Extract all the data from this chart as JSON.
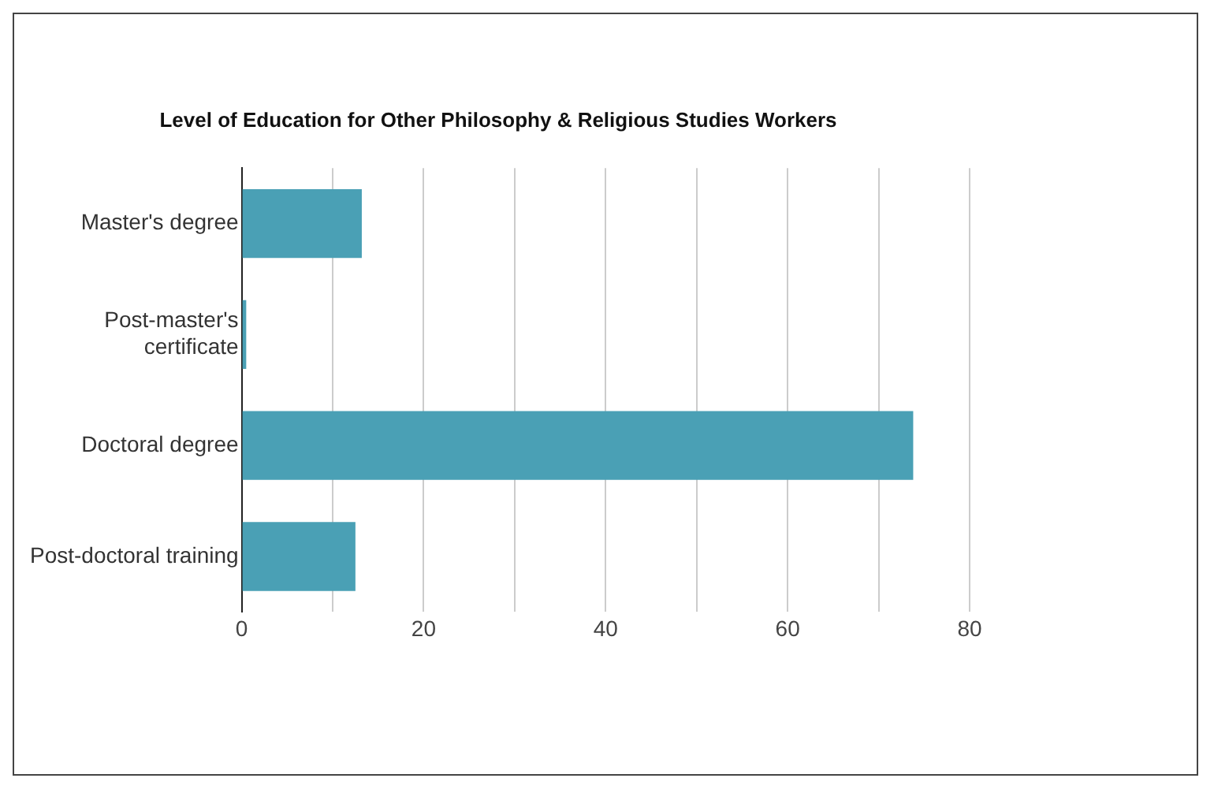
{
  "chart_data": {
    "type": "bar",
    "orientation": "horizontal",
    "title": "Level of Education for Other Philosophy & Religious Studies Workers",
    "categories": [
      "Master's degree",
      "Post-master's certificate",
      "Doctoral degree",
      "Post-doctoral training"
    ],
    "values": [
      13.2,
      0.5,
      73.8,
      12.5
    ],
    "color": "#4aa0b5",
    "xlim": [
      0,
      80
    ],
    "xticks": [
      0,
      {
        "value": 10,
        "label": null
      },
      20,
      {
        "value": 30,
        "label": null
      },
      40,
      {
        "value": 50,
        "label": null
      },
      60,
      {
        "value": 70,
        "label": null
      },
      80
    ],
    "grid": "x",
    "legend": false
  }
}
